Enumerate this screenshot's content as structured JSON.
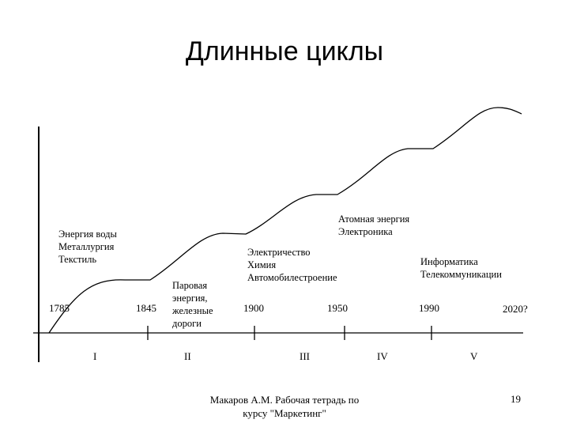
{
  "title": "Длинные циклы",
  "labels": {
    "wave1": [
      "Энергия воды",
      "Металлургия",
      "Текстиль"
    ],
    "wave2": [
      "Паровая",
      "энергия,",
      "железные",
      "дороги"
    ],
    "wave3": [
      "Электричество",
      "Химия",
      "Автомобилестроение"
    ],
    "wave4": [
      "Атомная энергия",
      "Электроника"
    ],
    "wave5": [
      "Информатика",
      "Телекоммуникации"
    ]
  },
  "years": [
    "1785",
    "1845",
    "1900",
    "1950",
    "1990",
    "2020?"
  ],
  "cycles": [
    "I",
    "II",
    "III",
    "IV",
    "V"
  ],
  "footer": [
    "Макаров А.М. Рабочая тетрадь по",
    "курсу \"Маркетинг\""
  ],
  "page_number": "19"
}
